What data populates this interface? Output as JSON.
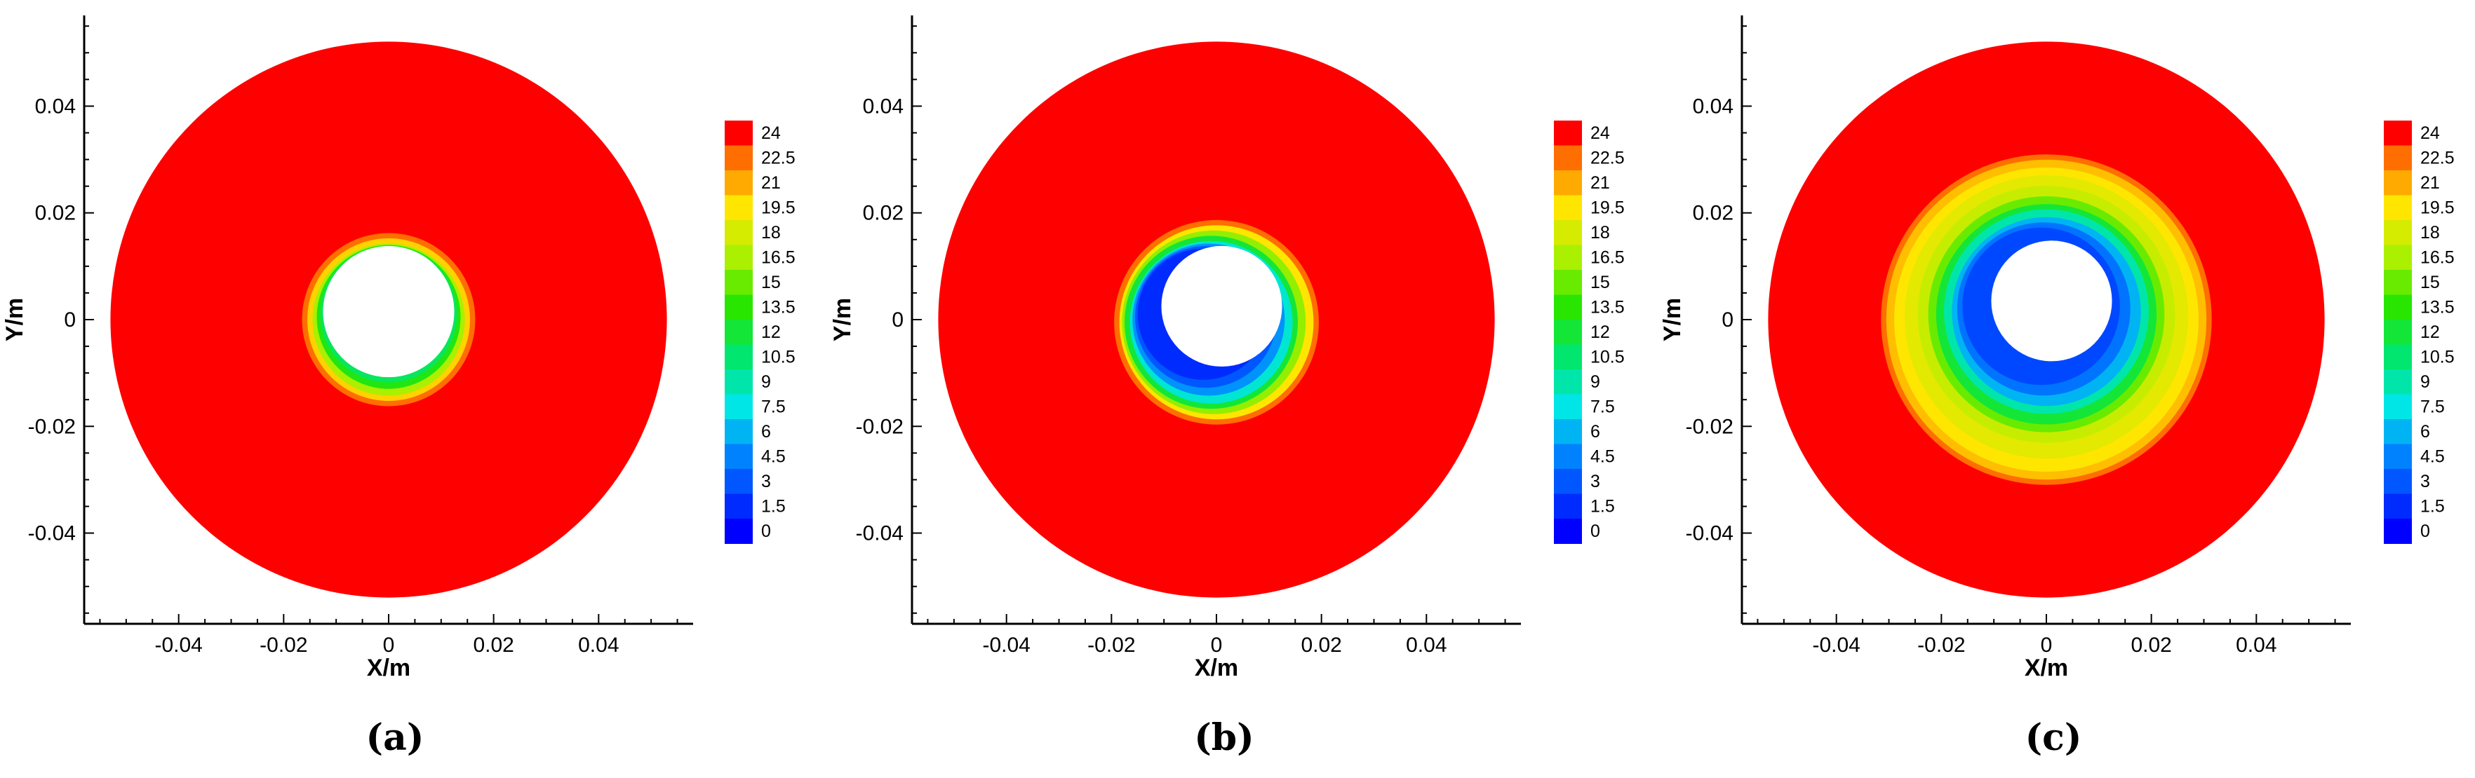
{
  "chart_data": [
    {
      "type": "heatmap",
      "caption": "(a)",
      "xlabel": "X/m",
      "ylabel": "Y/m",
      "xlim": [
        -0.058,
        0.058
      ],
      "ylim": [
        -0.057,
        0.057
      ],
      "x_ticks": [
        -0.04,
        -0.02,
        0,
        0.02,
        0.04
      ],
      "x_tick_labels": [
        "-0.04",
        "-0.02",
        "0",
        "0.02",
        "0.04"
      ],
      "y_ticks": [
        0.04,
        0.02,
        0,
        -0.02,
        -0.04
      ],
      "y_tick_labels": [
        "0.04",
        "0.02",
        "0",
        "-0.02",
        "-0.04"
      ],
      "domain": {
        "outer_radius": 0.053,
        "inner_radius": 0.0125,
        "inner_center": [
          0,
          0.0015
        ]
      },
      "field_bands": [
        {
          "outer_radius": 0.0165,
          "value": 22.5,
          "center": [
            0,
            0
          ]
        },
        {
          "outer_radius": 0.0155,
          "value": 20,
          "center": [
            0,
            0
          ]
        },
        {
          "outer_radius": 0.0145,
          "value": 16.5,
          "center": [
            0,
            0
          ]
        },
        {
          "outer_radius": 0.0137,
          "value": 13,
          "center": [
            0,
            0.0005
          ]
        },
        {
          "outer_radius": 0.013,
          "value": 11,
          "center": [
            0,
            0.001
          ]
        }
      ],
      "background_value": 24,
      "colorbar": {
        "levels": [
          24,
          22.5,
          21,
          19.5,
          18,
          16.5,
          15,
          13.5,
          12,
          10.5,
          9,
          7.5,
          6,
          4.5,
          3,
          1.5,
          0
        ],
        "labels": [
          "24",
          "22.5",
          "21",
          "19.5",
          "18",
          "16.5",
          "15",
          "13.5",
          "12",
          "10.5",
          "9",
          "7.5",
          "6",
          "4.5",
          "3",
          "1.5",
          "0"
        ]
      }
    },
    {
      "type": "heatmap",
      "caption": "(b)",
      "xlabel": "X/m",
      "ylabel": "Y/m",
      "xlim": [
        -0.058,
        0.058
      ],
      "ylim": [
        -0.057,
        0.057
      ],
      "x_ticks": [
        -0.04,
        -0.02,
        0,
        0.02,
        0.04
      ],
      "x_tick_labels": [
        "-0.04",
        "-0.02",
        "0",
        "0.02",
        "0.04"
      ],
      "y_ticks": [
        0.04,
        0.02,
        0,
        -0.02,
        -0.04
      ],
      "y_tick_labels": [
        "0.04",
        "0.02",
        "0",
        "-0.02",
        "-0.04"
      ],
      "domain": {
        "outer_radius": 0.053,
        "inner_radius": 0.0115,
        "inner_center": [
          0.001,
          0.0025
        ]
      },
      "field_bands": [
        {
          "outer_radius": 0.0195,
          "value": 22.5,
          "center": [
            0,
            -0.0005
          ]
        },
        {
          "outer_radius": 0.0185,
          "value": 19.5,
          "center": [
            0,
            -0.0005
          ]
        },
        {
          "outer_radius": 0.0175,
          "value": 16,
          "center": [
            -0.0005,
            -0.0005
          ]
        },
        {
          "outer_radius": 0.0165,
          "value": 12,
          "center": [
            -0.001,
            -0.0005
          ]
        },
        {
          "outer_radius": 0.0155,
          "value": 8,
          "center": [
            -0.001,
            -0.0005
          ]
        },
        {
          "outer_radius": 0.0145,
          "value": 5,
          "center": [
            -0.0015,
            0
          ]
        },
        {
          "outer_radius": 0.0135,
          "value": 3,
          "center": [
            -0.002,
            0.0005
          ]
        },
        {
          "outer_radius": 0.0125,
          "value": 1.5,
          "center": [
            -0.0025,
            0.001
          ]
        }
      ],
      "background_value": 24,
      "colorbar": {
        "levels": [
          24,
          22.5,
          21,
          19.5,
          18,
          16.5,
          15,
          13.5,
          12,
          10.5,
          9,
          7.5,
          6,
          4.5,
          3,
          1.5,
          0
        ],
        "labels": [
          "24",
          "22.5",
          "21",
          "19.5",
          "18",
          "16.5",
          "15",
          "13.5",
          "12",
          "10.5",
          "9",
          "7.5",
          "6",
          "4.5",
          "3",
          "1.5",
          "0"
        ]
      }
    },
    {
      "type": "heatmap",
      "caption": "(c)",
      "xlabel": "X/m",
      "ylabel": "Y/m",
      "xlim": [
        -0.058,
        0.058
      ],
      "ylim": [
        -0.057,
        0.057
      ],
      "x_ticks": [
        -0.04,
        -0.02,
        0,
        0.02,
        0.04
      ],
      "x_tick_labels": [
        "-0.04",
        "-0.02",
        "0",
        "0.02",
        "0.04"
      ],
      "y_ticks": [
        0.04,
        0.02,
        0,
        -0.02,
        -0.04
      ],
      "y_tick_labels": [
        "0.04",
        "0.02",
        "0",
        "-0.02",
        "-0.04"
      ],
      "domain": {
        "outer_radius": 0.053,
        "inner_radius": 0.0115,
        "inner_center": [
          0.001,
          0.0035
        ]
      },
      "field_bands": [
        {
          "outer_radius": 0.0315,
          "value": 22.5,
          "center": [
            0,
            0
          ]
        },
        {
          "outer_radius": 0.0305,
          "value": 20.5,
          "center": [
            0,
            0
          ]
        },
        {
          "outer_radius": 0.029,
          "value": 19.5,
          "center": [
            0,
            0
          ]
        },
        {
          "outer_radius": 0.027,
          "value": 18.5,
          "center": [
            0,
            0.0005
          ]
        },
        {
          "outer_radius": 0.0245,
          "value": 17.5,
          "center": [
            0,
            0.001
          ]
        },
        {
          "outer_radius": 0.0225,
          "value": 15,
          "center": [
            0,
            0.001
          ]
        },
        {
          "outer_radius": 0.021,
          "value": 12,
          "center": [
            0,
            0.001
          ]
        },
        {
          "outer_radius": 0.0195,
          "value": 9,
          "center": [
            0,
            0.0015
          ]
        },
        {
          "outer_radius": 0.018,
          "value": 6,
          "center": [
            0,
            0.0015
          ]
        },
        {
          "outer_radius": 0.0165,
          "value": 4,
          "center": [
            -0.0005,
            0.002
          ]
        },
        {
          "outer_radius": 0.015,
          "value": 2.5,
          "center": [
            -0.001,
            0.0025
          ]
        }
      ],
      "background_value": 24,
      "colorbar": {
        "levels": [
          24,
          22.5,
          21,
          19.5,
          18,
          16.5,
          15,
          13.5,
          12,
          10.5,
          9,
          7.5,
          6,
          4.5,
          3,
          1.5,
          0
        ],
        "labels": [
          "24",
          "22.5",
          "21",
          "19.5",
          "18",
          "16.5",
          "15",
          "13.5",
          "12",
          "10.5",
          "9",
          "7.5",
          "6",
          "4.5",
          "3",
          "1.5",
          "0"
        ]
      }
    }
  ]
}
